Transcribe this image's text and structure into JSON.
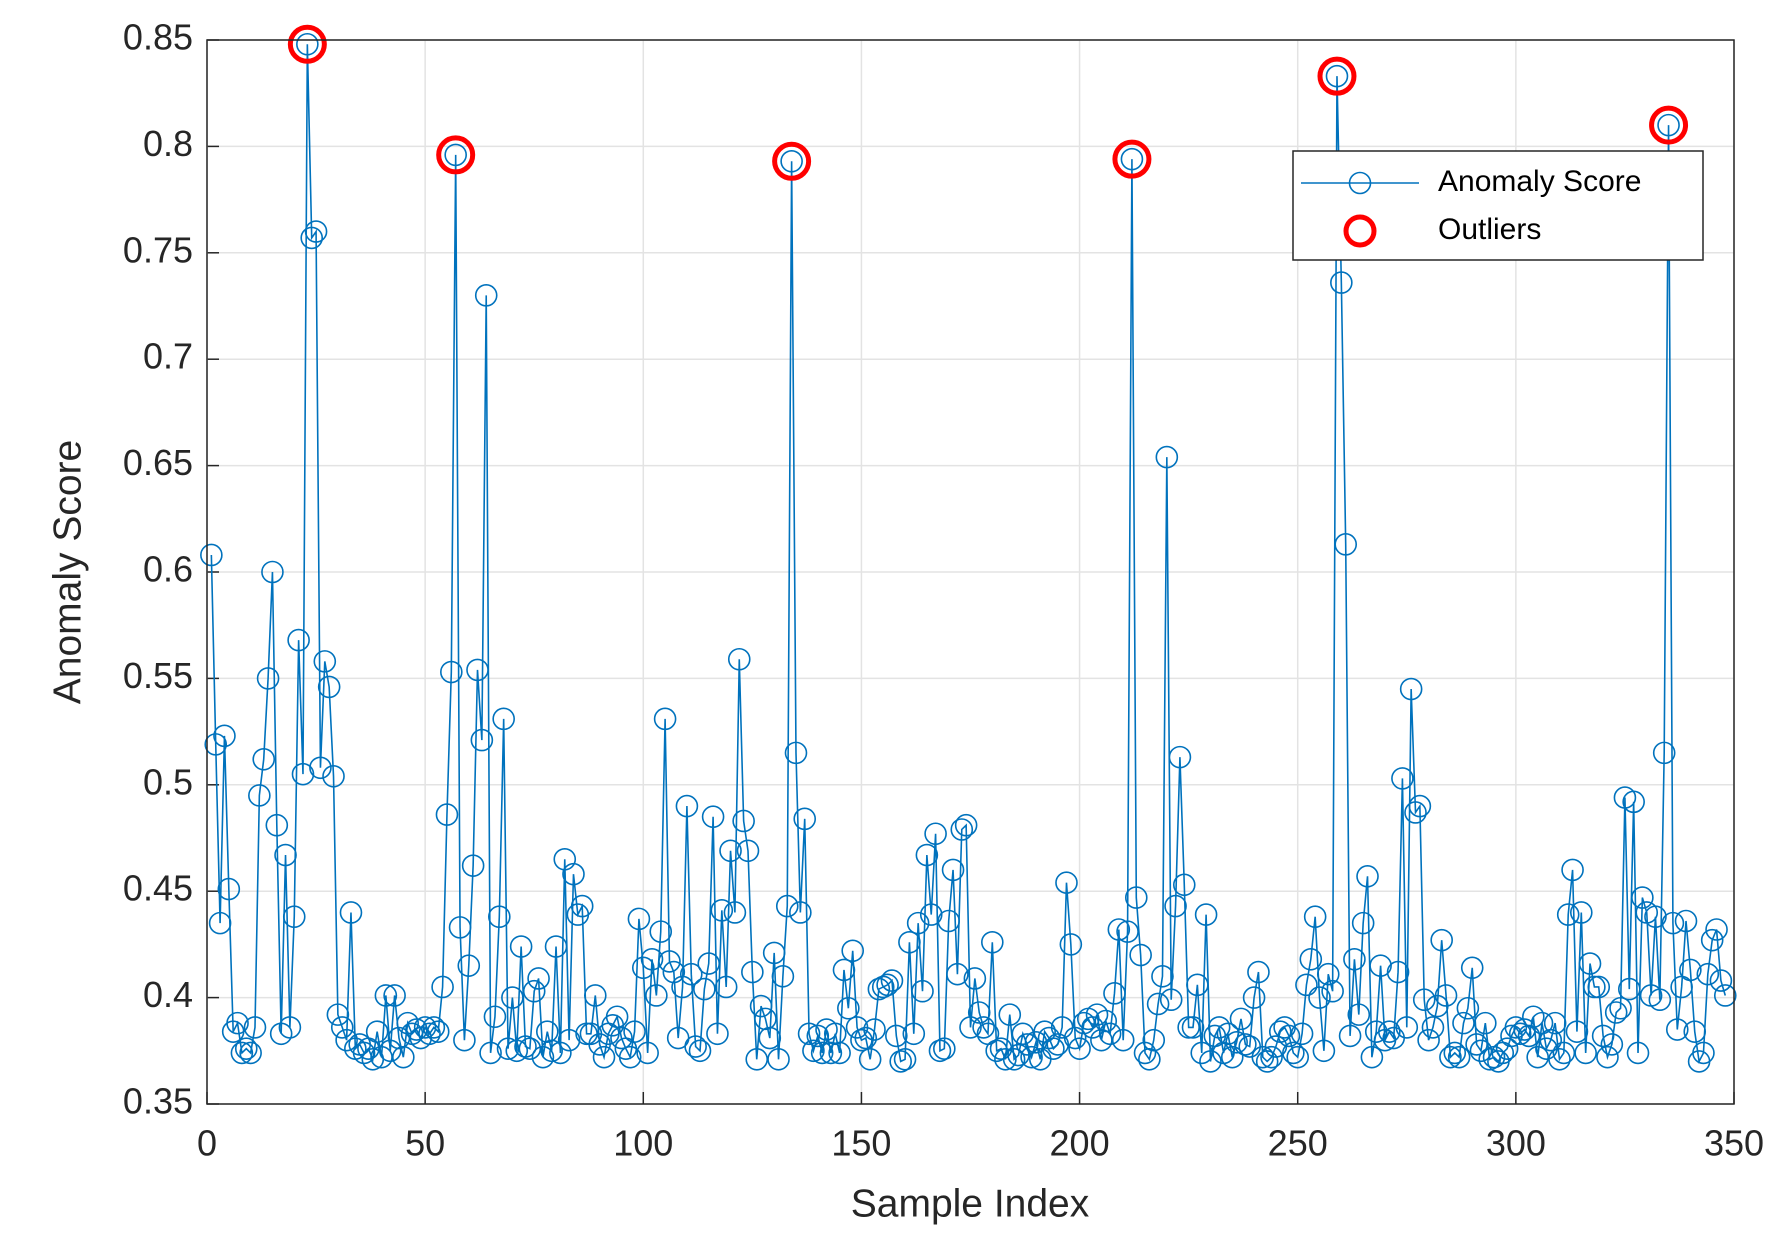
{
  "chart_data": {
    "type": "line",
    "xlabel": "Sample Index",
    "ylabel": "Anomaly Score",
    "xlim": [
      0,
      350
    ],
    "xticks": [
      0,
      50,
      100,
      150,
      200,
      250,
      300,
      350
    ],
    "ylim": [
      0.35,
      0.85
    ],
    "yticks": [
      0.35,
      0.4,
      0.45,
      0.5,
      0.55,
      0.6,
      0.65,
      0.7,
      0.75,
      0.8,
      0.85
    ],
    "grid": true,
    "legend": "upper right",
    "series": [
      {
        "name": "Anomaly Score",
        "color": "#0072bd",
        "marker": "circle",
        "x": [
          1,
          2,
          3,
          4,
          5,
          6,
          7,
          8,
          9,
          10,
          11,
          12,
          13,
          14,
          15,
          16,
          17,
          18,
          19,
          20,
          21,
          22,
          23,
          24,
          25,
          26,
          27,
          28,
          29,
          30,
          31,
          32,
          33,
          34,
          35,
          36,
          37,
          38,
          39,
          40,
          41,
          42,
          43,
          44,
          45,
          46,
          47,
          48,
          49,
          50,
          51,
          52,
          53,
          54,
          55,
          56,
          57,
          58,
          59,
          60,
          61,
          62,
          63,
          64,
          65,
          66,
          67,
          68,
          69,
          70,
          71,
          72,
          73,
          74,
          75,
          76,
          77,
          78,
          79,
          80,
          81,
          82,
          83,
          84,
          85,
          86,
          87,
          88,
          89,
          90,
          91,
          92,
          93,
          94,
          95,
          96,
          97,
          98,
          99,
          100,
          101,
          102,
          103,
          104,
          105,
          106,
          107,
          108,
          109,
          110,
          111,
          112,
          113,
          114,
          115,
          116,
          117,
          118,
          119,
          120,
          121,
          122,
          123,
          124,
          125,
          126,
          127,
          128,
          129,
          130,
          131,
          132,
          133,
          134,
          135,
          136,
          137,
          138,
          139,
          140,
          141,
          142,
          143,
          144,
          145,
          146,
          147,
          148,
          149,
          150,
          151,
          152,
          153,
          154,
          155,
          156,
          157,
          158,
          159,
          160,
          161,
          162,
          163,
          164,
          165,
          166,
          167,
          168,
          169,
          170,
          171,
          172,
          173,
          174,
          175,
          176,
          177,
          178,
          179,
          180,
          181,
          182,
          183,
          184,
          185,
          186,
          187,
          188,
          189,
          190,
          191,
          192,
          193,
          194,
          195,
          196,
          197,
          198,
          199,
          200,
          201,
          202,
          203,
          204,
          205,
          206,
          207,
          208,
          209,
          210,
          211,
          212,
          213,
          214,
          215,
          216,
          217,
          218,
          219,
          220,
          221,
          222,
          223,
          224,
          225,
          226,
          227,
          228,
          229,
          230,
          231,
          232,
          233,
          234,
          235,
          236,
          237,
          238,
          239,
          240,
          241,
          242,
          243,
          244,
          245,
          246,
          247,
          248,
          249,
          250,
          251,
          252,
          253,
          254,
          255,
          256,
          257,
          258,
          259,
          260,
          261,
          262,
          263,
          264,
          265,
          266,
          267,
          268,
          269,
          270,
          271,
          272,
          273,
          274,
          275,
          276,
          277,
          278,
          279,
          280,
          281,
          282,
          283,
          284,
          285,
          286,
          287,
          288,
          289,
          290,
          291,
          292,
          293,
          294,
          295,
          296,
          297,
          298,
          299,
          300,
          301,
          302,
          303,
          304,
          305,
          306,
          307,
          308,
          309,
          310,
          311,
          312,
          313,
          314,
          315,
          316,
          317,
          318,
          319,
          320,
          321,
          322,
          323,
          324,
          325,
          326,
          327,
          328,
          329,
          330,
          331,
          332,
          333,
          334,
          335,
          336,
          337,
          338,
          339,
          340,
          341,
          342,
          343,
          344,
          345,
          346,
          347,
          348
        ],
        "values": [
          0.608,
          0.519,
          0.435,
          0.523,
          0.451,
          0.384,
          0.388,
          0.374,
          0.376,
          0.374,
          0.386,
          0.495,
          0.512,
          0.55,
          0.6,
          0.481,
          0.383,
          0.467,
          0.386,
          0.438,
          0.568,
          0.505,
          0.848,
          0.757,
          0.76,
          0.508,
          0.558,
          0.546,
          0.504,
          0.392,
          0.386,
          0.38,
          0.44,
          0.376,
          0.378,
          0.374,
          0.376,
          0.371,
          0.384,
          0.372,
          0.401,
          0.375,
          0.401,
          0.381,
          0.372,
          0.388,
          0.383,
          0.385,
          0.381,
          0.386,
          0.383,
          0.386,
          0.384,
          0.405,
          0.486,
          0.553,
          0.796,
          0.433,
          0.38,
          0.415,
          0.462,
          0.554,
          0.521,
          0.73,
          0.374,
          0.391,
          0.438,
          0.531,
          0.376,
          0.4,
          0.375,
          0.424,
          0.377,
          0.376,
          0.403,
          0.409,
          0.372,
          0.384,
          0.375,
          0.424,
          0.374,
          0.465,
          0.38,
          0.458,
          0.439,
          0.443,
          0.383,
          0.383,
          0.401,
          0.378,
          0.372,
          0.383,
          0.387,
          0.391,
          0.381,
          0.376,
          0.372,
          0.384,
          0.437,
          0.414,
          0.374,
          0.418,
          0.401,
          0.431,
          0.531,
          0.417,
          0.412,
          0.381,
          0.405,
          0.49,
          0.411,
          0.377,
          0.375,
          0.404,
          0.416,
          0.485,
          0.383,
          0.441,
          0.405,
          0.469,
          0.44,
          0.559,
          0.483,
          0.469,
          0.412,
          0.371,
          0.396,
          0.39,
          0.381,
          0.421,
          0.371,
          0.41,
          0.443,
          0.793,
          0.515,
          0.44,
          0.484,
          0.383,
          0.375,
          0.382,
          0.374,
          0.385,
          0.374,
          0.383,
          0.374,
          0.413,
          0.395,
          0.422,
          0.386,
          0.38,
          0.381,
          0.371,
          0.385,
          0.404,
          0.405,
          0.406,
          0.408,
          0.382,
          0.37,
          0.371,
          0.426,
          0.383,
          0.435,
          0.403,
          0.467,
          0.439,
          0.477,
          0.375,
          0.376,
          0.436,
          0.46,
          0.411,
          0.479,
          0.481,
          0.386,
          0.409,
          0.393,
          0.386,
          0.383,
          0.426,
          0.375,
          0.376,
          0.371,
          0.392,
          0.371,
          0.373,
          0.383,
          0.378,
          0.372,
          0.379,
          0.371,
          0.384,
          0.381,
          0.376,
          0.378,
          0.386,
          0.454,
          0.425,
          0.381,
          0.376,
          0.388,
          0.39,
          0.386,
          0.392,
          0.38,
          0.389,
          0.383,
          0.402,
          0.432,
          0.38,
          0.431,
          0.794,
          0.447,
          0.42,
          0.374,
          0.371,
          0.38,
          0.397,
          0.41,
          0.654,
          0.399,
          0.443,
          0.513,
          0.453,
          0.386,
          0.386,
          0.406,
          0.374,
          0.439,
          0.37,
          0.382,
          0.386,
          0.374,
          0.383,
          0.372,
          0.379,
          0.39,
          0.378,
          0.377,
          0.4,
          0.412,
          0.372,
          0.37,
          0.372,
          0.377,
          0.384,
          0.386,
          0.382,
          0.374,
          0.372,
          0.383,
          0.406,
          0.418,
          0.438,
          0.4,
          0.375,
          0.411,
          0.403,
          0.833,
          0.736,
          0.613,
          0.382,
          0.418,
          0.392,
          0.435,
          0.457,
          0.372,
          0.384,
          0.415,
          0.38,
          0.384,
          0.381,
          0.412,
          0.503,
          0.386,
          0.545,
          0.487,
          0.49,
          0.399,
          0.38,
          0.386,
          0.396,
          0.427,
          0.401,
          0.372,
          0.374,
          0.372,
          0.388,
          0.395,
          0.414,
          0.378,
          0.375,
          0.388,
          0.371,
          0.372,
          0.37,
          0.374,
          0.376,
          0.382,
          0.386,
          0.383,
          0.385,
          0.382,
          0.391,
          0.372,
          0.388,
          0.376,
          0.38,
          0.388,
          0.371,
          0.374,
          0.439,
          0.46,
          0.384,
          0.44,
          0.374,
          0.416,
          0.405,
          0.405,
          0.382,
          0.372,
          0.378,
          0.393,
          0.395,
          0.494,
          0.404,
          0.492,
          0.374,
          0.447,
          0.44,
          0.401,
          0.438,
          0.399,
          0.515,
          0.81,
          0.435,
          0.385,
          0.405,
          0.436,
          0.413,
          0.384,
          0.37,
          0.374,
          0.411,
          0.427,
          0.432,
          0.408,
          0.401
        ]
      },
      {
        "name": "Outliers",
        "color": "#ff0000",
        "marker": "ring",
        "line": false,
        "x": [
          23,
          57,
          134,
          212,
          259,
          335
        ],
        "values": [
          0.848,
          0.796,
          0.793,
          0.794,
          0.833,
          0.81
        ]
      }
    ]
  }
}
